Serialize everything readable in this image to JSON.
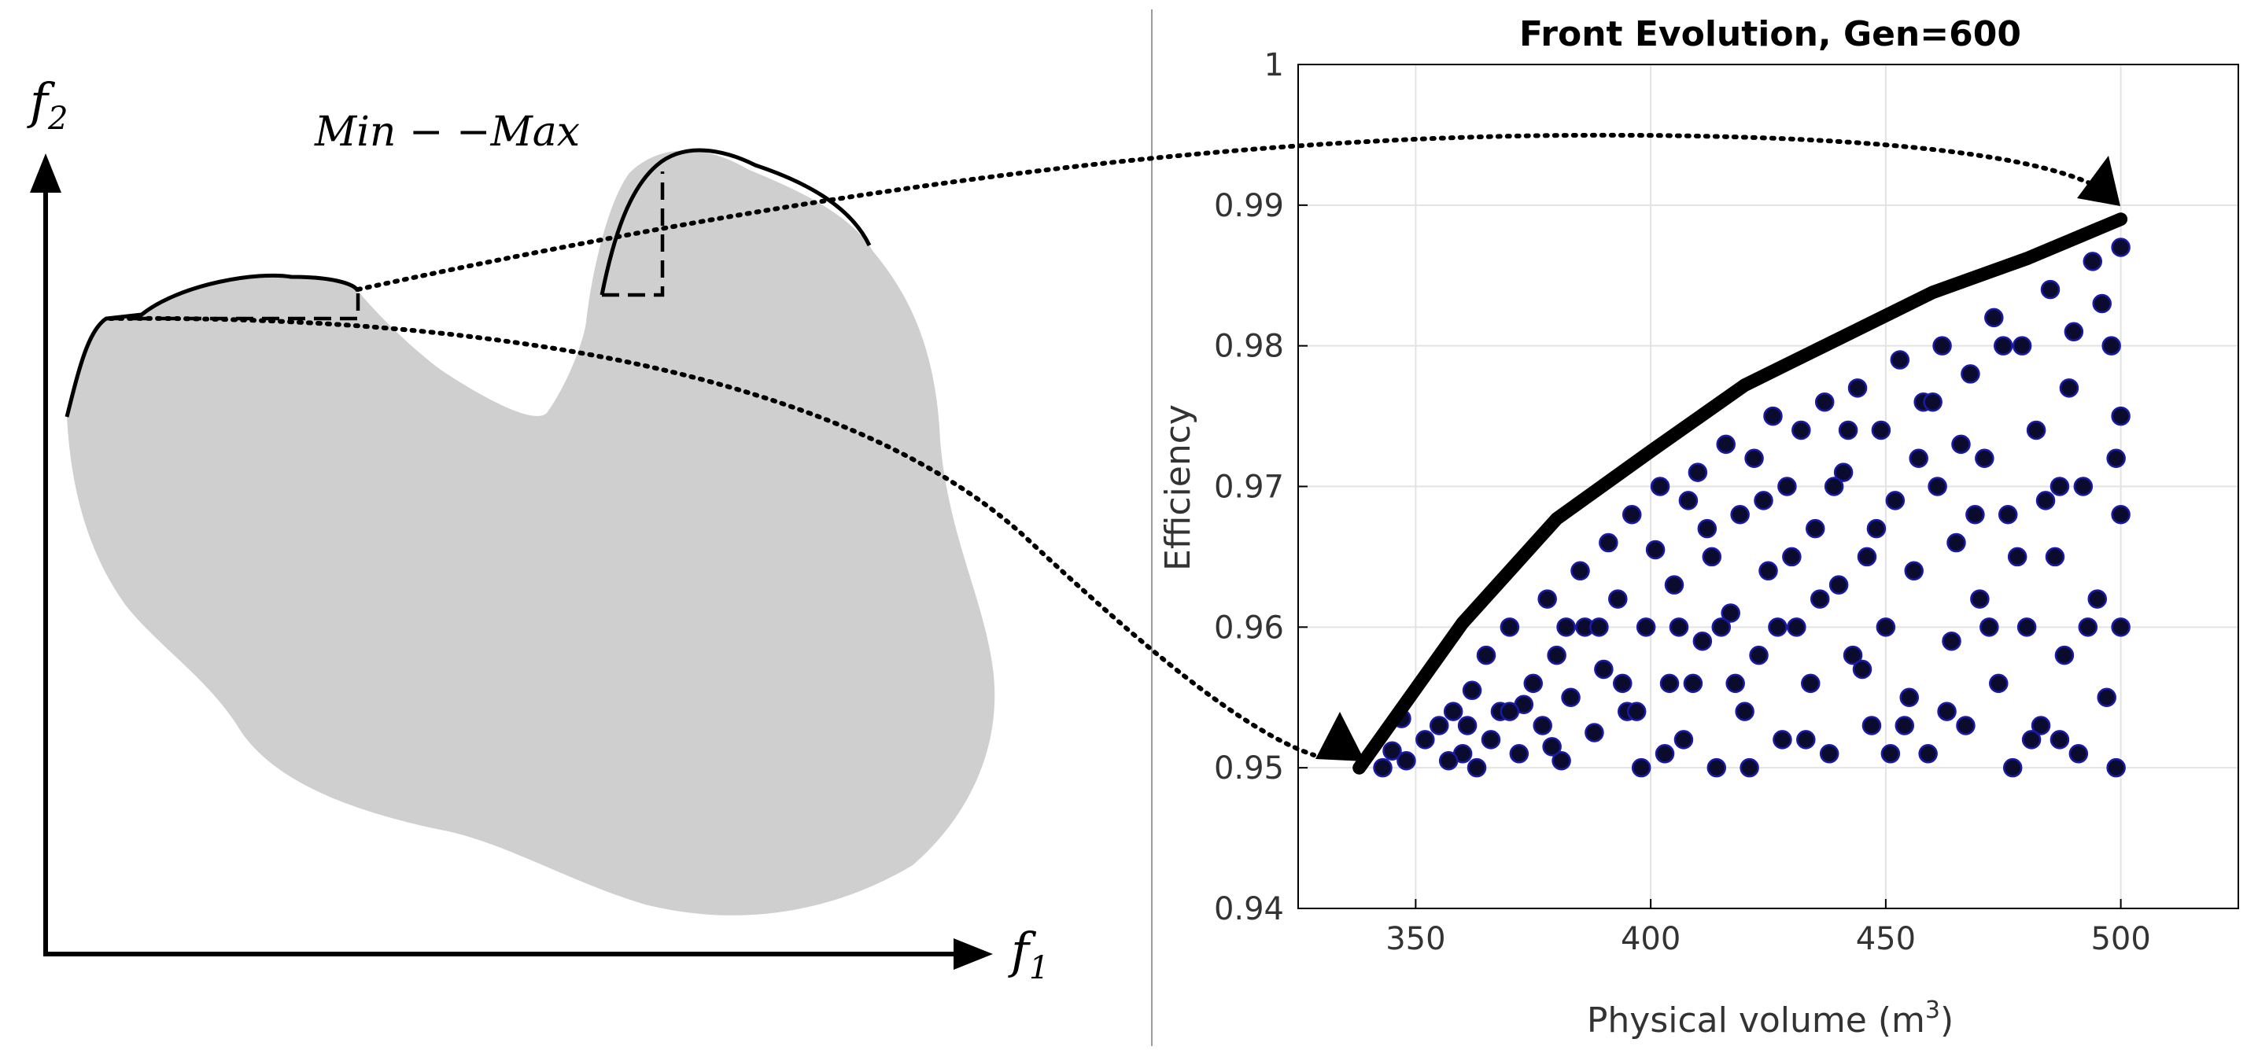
{
  "left_diagram": {
    "x_axis_label": "f",
    "x_axis_sub": "1",
    "y_axis_label": "f",
    "y_axis_sub": "2",
    "annotation": "Min − −Max",
    "region_fill": "#d0cfd0"
  },
  "chart_data": {
    "type": "scatter",
    "title": "Front Evolution, Gen=600",
    "xlabel": "Physical volume (m",
    "xlabel_sup": "3",
    "xlabel_tail": ")",
    "ylabel": "Efficiency",
    "xlim": [
      325,
      525
    ],
    "ylim": [
      0.94,
      1.0
    ],
    "x_ticks": [
      350,
      400,
      450,
      500
    ],
    "y_ticks": [
      0.94,
      0.95,
      0.96,
      0.97,
      0.98,
      0.99,
      1
    ],
    "x_tick_labels": [
      "350",
      "400",
      "450",
      "500"
    ],
    "y_tick_labels": [
      "0.94",
      "0.95",
      "0.96",
      "0.97",
      "0.98",
      "0.99",
      "1"
    ],
    "grid": true,
    "marker_fill": "#0b0b2e",
    "marker_edge": "#1a1aa8",
    "front_curve": {
      "x": [
        338,
        360,
        380,
        400,
        420,
        440,
        460,
        480,
        500
      ],
      "y": [
        0.95,
        0.9603,
        0.9677,
        0.9725,
        0.9772,
        0.9805,
        0.9838,
        0.9862,
        0.989
      ]
    },
    "points": [
      [
        343,
        0.95
      ],
      [
        345,
        0.9512
      ],
      [
        348,
        0.9505
      ],
      [
        352,
        0.952
      ],
      [
        355,
        0.953
      ],
      [
        358,
        0.954
      ],
      [
        360,
        0.951
      ],
      [
        362,
        0.9555
      ],
      [
        365,
        0.958
      ],
      [
        366,
        0.952
      ],
      [
        368,
        0.954
      ],
      [
        370,
        0.96
      ],
      [
        372,
        0.951
      ],
      [
        375,
        0.956
      ],
      [
        377,
        0.953
      ],
      [
        378,
        0.962
      ],
      [
        380,
        0.958
      ],
      [
        381,
        0.9505
      ],
      [
        383,
        0.955
      ],
      [
        385,
        0.964
      ],
      [
        386,
        0.96
      ],
      [
        388,
        0.9525
      ],
      [
        390,
        0.957
      ],
      [
        391,
        0.966
      ],
      [
        393,
        0.962
      ],
      [
        395,
        0.954
      ],
      [
        396,
        0.968
      ],
      [
        398,
        0.95
      ],
      [
        399,
        0.96
      ],
      [
        401,
        0.9655
      ],
      [
        402,
        0.97
      ],
      [
        404,
        0.956
      ],
      [
        405,
        0.963
      ],
      [
        407,
        0.952
      ],
      [
        408,
        0.969
      ],
      [
        410,
        0.971
      ],
      [
        411,
        0.959
      ],
      [
        413,
        0.965
      ],
      [
        414,
        0.95
      ],
      [
        416,
        0.973
      ],
      [
        417,
        0.961
      ],
      [
        419,
        0.968
      ],
      [
        420,
        0.954
      ],
      [
        422,
        0.972
      ],
      [
        423,
        0.958
      ],
      [
        425,
        0.964
      ],
      [
        426,
        0.975
      ],
      [
        428,
        0.952
      ],
      [
        429,
        0.97
      ],
      [
        431,
        0.96
      ],
      [
        432,
        0.974
      ],
      [
        434,
        0.956
      ],
      [
        435,
        0.967
      ],
      [
        437,
        0.976
      ],
      [
        438,
        0.951
      ],
      [
        440,
        0.963
      ],
      [
        441,
        0.971
      ],
      [
        443,
        0.958
      ],
      [
        444,
        0.977
      ],
      [
        446,
        0.965
      ],
      [
        447,
        0.953
      ],
      [
        449,
        0.974
      ],
      [
        450,
        0.96
      ],
      [
        452,
        0.969
      ],
      [
        453,
        0.979
      ],
      [
        455,
        0.955
      ],
      [
        456,
        0.964
      ],
      [
        458,
        0.976
      ],
      [
        459,
        0.951
      ],
      [
        461,
        0.97
      ],
      [
        462,
        0.98
      ],
      [
        464,
        0.959
      ],
      [
        465,
        0.966
      ],
      [
        467,
        0.953
      ],
      [
        468,
        0.978
      ],
      [
        470,
        0.962
      ],
      [
        471,
        0.972
      ],
      [
        473,
        0.982
      ],
      [
        474,
        0.956
      ],
      [
        476,
        0.968
      ],
      [
        477,
        0.95
      ],
      [
        479,
        0.98
      ],
      [
        480,
        0.96
      ],
      [
        482,
        0.974
      ],
      [
        483,
        0.953
      ],
      [
        485,
        0.984
      ],
      [
        486,
        0.965
      ],
      [
        488,
        0.958
      ],
      [
        489,
        0.977
      ],
      [
        491,
        0.951
      ],
      [
        492,
        0.97
      ],
      [
        494,
        0.986
      ],
      [
        495,
        0.962
      ],
      [
        497,
        0.955
      ],
      [
        498,
        0.98
      ],
      [
        499,
        0.95
      ],
      [
        500,
        0.968
      ],
      [
        500,
        0.987
      ],
      [
        500,
        0.96
      ],
      [
        500,
        0.975
      ],
      [
        347,
        0.9535
      ],
      [
        357,
        0.9505
      ],
      [
        363,
        0.95
      ],
      [
        373,
        0.9545
      ],
      [
        379,
        0.9515
      ],
      [
        389,
        0.96
      ],
      [
        397,
        0.954
      ],
      [
        403,
        0.951
      ],
      [
        409,
        0.956
      ],
      [
        415,
        0.96
      ],
      [
        421,
        0.95
      ],
      [
        427,
        0.96
      ],
      [
        433,
        0.952
      ],
      [
        439,
        0.97
      ],
      [
        445,
        0.957
      ],
      [
        451,
        0.951
      ],
      [
        457,
        0.972
      ],
      [
        463,
        0.954
      ],
      [
        469,
        0.968
      ],
      [
        475,
        0.98
      ],
      [
        481,
        0.952
      ],
      [
        487,
        0.97
      ],
      [
        493,
        0.96
      ],
      [
        496,
        0.983
      ],
      [
        499,
        0.972
      ],
      [
        412,
        0.967
      ],
      [
        424,
        0.969
      ],
      [
        436,
        0.962
      ],
      [
        448,
        0.967
      ],
      [
        460,
        0.976
      ],
      [
        472,
        0.96
      ],
      [
        484,
        0.969
      ],
      [
        490,
        0.981
      ],
      [
        418,
        0.956
      ],
      [
        430,
        0.965
      ],
      [
        442,
        0.974
      ],
      [
        454,
        0.953
      ],
      [
        466,
        0.973
      ],
      [
        478,
        0.965
      ],
      [
        487,
        0.952
      ],
      [
        406,
        0.96
      ],
      [
        394,
        0.956
      ],
      [
        382,
        0.96
      ],
      [
        370,
        0.954
      ],
      [
        361,
        0.953
      ]
    ]
  }
}
